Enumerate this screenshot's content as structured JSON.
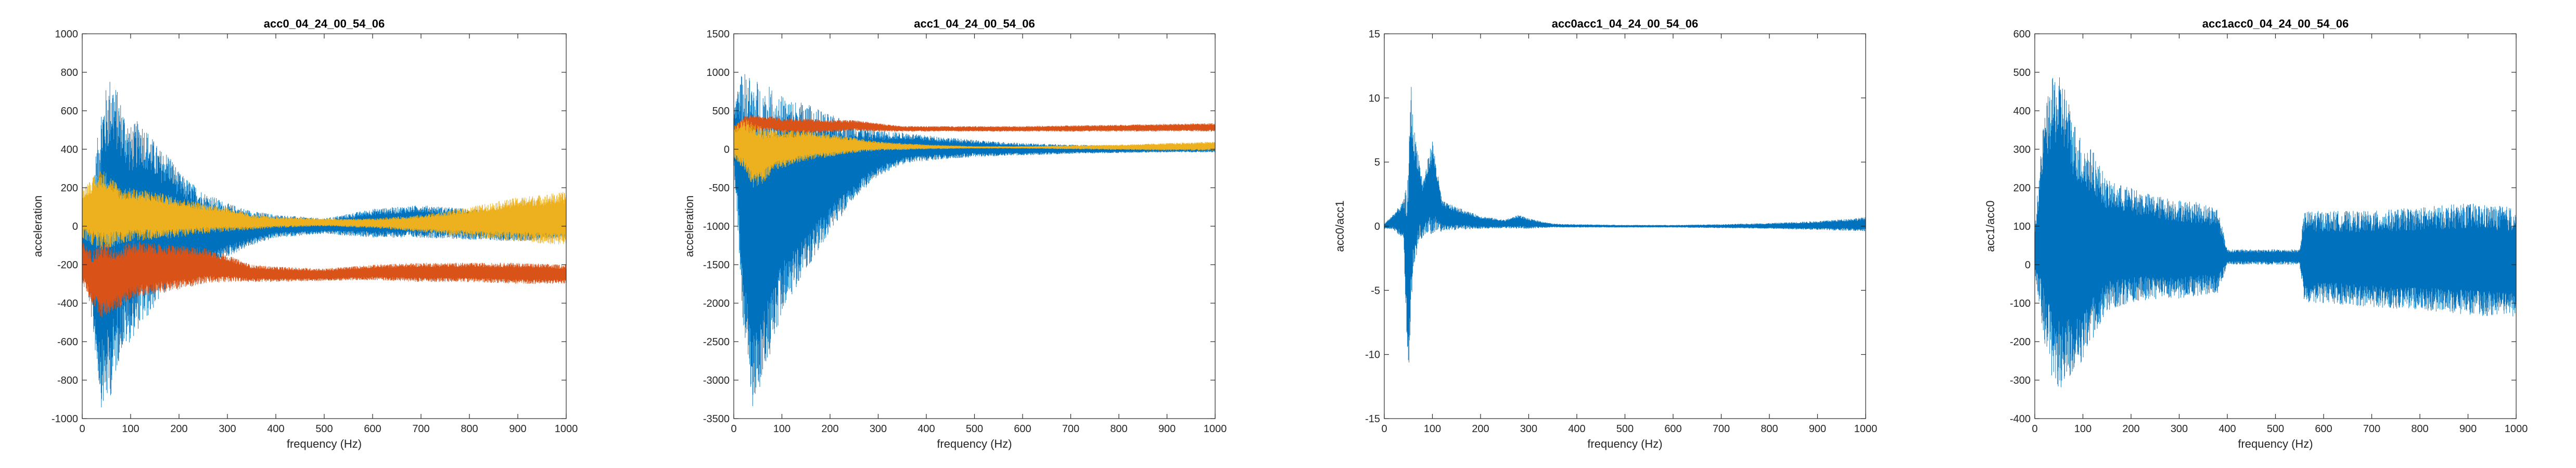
{
  "colors": {
    "series1": "#0072BD",
    "series2": "#D95319",
    "series3": "#EDB120",
    "axis": "#262626"
  },
  "chart_data": [
    {
      "type": "line",
      "title": "acc0_04_24_00_54_06",
      "xlabel": "frequency (Hz)",
      "ylabel": "acceleration",
      "xlim": [
        0,
        1000
      ],
      "ylim": [
        -1000,
        1000
      ],
      "xticks": [
        "0",
        "100",
        "200",
        "300",
        "400",
        "500",
        "600",
        "700",
        "800",
        "900",
        "1000"
      ],
      "yticks": [
        "-1000",
        "-800",
        "-600",
        "-400",
        "-200",
        "0",
        "200",
        "400",
        "600",
        "800",
        "1000"
      ],
      "grid": false,
      "envelope_series": [
        {
          "color_key": "series1",
          "x": [
            0,
            20,
            40,
            60,
            80,
            100,
            120,
            140,
            160,
            180,
            200,
            250,
            300,
            350,
            400,
            500,
            600,
            700,
            800,
            900,
            1000
          ],
          "upper": [
            100,
            200,
            650,
            800,
            650,
            520,
            560,
            480,
            400,
            380,
            280,
            180,
            120,
            80,
            60,
            40,
            90,
            110,
            90,
            60,
            20
          ],
          "lower": [
            -150,
            -500,
            -950,
            -880,
            -650,
            -600,
            -520,
            -460,
            -380,
            -320,
            -300,
            -250,
            -160,
            -100,
            -60,
            -40,
            -60,
            -60,
            -70,
            -80,
            -60
          ]
        },
        {
          "color_key": "series2",
          "x": [
            0,
            20,
            40,
            60,
            80,
            100,
            150,
            200,
            250,
            300,
            350,
            400,
            500,
            600,
            700,
            800,
            900,
            1000
          ],
          "upper": [
            -80,
            -130,
            -80,
            -100,
            -110,
            -70,
            -90,
            -100,
            -110,
            -150,
            -200,
            -210,
            -220,
            -200,
            -190,
            -190,
            -190,
            -200
          ],
          "lower": [
            -300,
            -400,
            -480,
            -450,
            -420,
            -380,
            -350,
            -330,
            -300,
            -290,
            -290,
            -290,
            -285,
            -280,
            -290,
            -290,
            -300,
            -300
          ]
        },
        {
          "color_key": "series3",
          "x": [
            0,
            20,
            40,
            60,
            80,
            100,
            150,
            200,
            250,
            300,
            350,
            400,
            500,
            600,
            700,
            800,
            900,
            1000
          ],
          "upper": [
            200,
            250,
            300,
            260,
            200,
            200,
            180,
            150,
            120,
            100,
            60,
            50,
            40,
            40,
            60,
            100,
            150,
            180
          ],
          "lower": [
            -60,
            -100,
            -130,
            -110,
            -90,
            -80,
            -70,
            -60,
            -40,
            -30,
            -20,
            -10,
            0,
            -10,
            -30,
            -60,
            -80,
            -100
          ]
        }
      ]
    },
    {
      "type": "line",
      "title": "acc1_04_24_00_54_06",
      "xlabel": "frequency (Hz)",
      "ylabel": "acceleration",
      "xlim": [
        0,
        1000
      ],
      "ylim": [
        -3500,
        1500
      ],
      "xticks": [
        "0",
        "100",
        "200",
        "300",
        "400",
        "500",
        "600",
        "700",
        "800",
        "900",
        "1000"
      ],
      "yticks": [
        "-3500",
        "-3000",
        "-2500",
        "-2000",
        "-1500",
        "-1000",
        "-500",
        "0",
        "500",
        "1000",
        "1500"
      ],
      "grid": false,
      "envelope_series": [
        {
          "color_key": "series1",
          "x": [
            0,
            10,
            20,
            40,
            60,
            80,
            100,
            150,
            200,
            250,
            300,
            350,
            400,
            500,
            600,
            700,
            800,
            900,
            1000
          ],
          "upper": [
            500,
            900,
            1000,
            950,
            850,
            800,
            700,
            600,
            450,
            350,
            250,
            220,
            180,
            120,
            80,
            60,
            50,
            40,
            40
          ],
          "lower": [
            -200,
            -1200,
            -2400,
            -3400,
            -3000,
            -2600,
            -2100,
            -1600,
            -1100,
            -650,
            -350,
            -200,
            -150,
            -100,
            -80,
            -60,
            -50,
            -40,
            -40
          ]
        },
        {
          "color_key": "series2",
          "x": [
            0,
            20,
            40,
            60,
            80,
            100,
            150,
            200,
            250,
            300,
            350,
            400,
            500,
            600,
            700,
            800,
            900,
            1000
          ],
          "upper": [
            300,
            420,
            450,
            420,
            430,
            400,
            400,
            380,
            380,
            340,
            300,
            300,
            300,
            300,
            310,
            320,
            330,
            340
          ],
          "lower": [
            150,
            200,
            220,
            240,
            240,
            220,
            200,
            220,
            240,
            230,
            230,
            230,
            230,
            230,
            230,
            230,
            230,
            230
          ]
        },
        {
          "color_key": "series3",
          "x": [
            0,
            20,
            40,
            60,
            80,
            100,
            150,
            200,
            250,
            300,
            350,
            400,
            500,
            600,
            700,
            800,
            900,
            1000
          ],
          "upper": [
            300,
            400,
            350,
            300,
            280,
            250,
            250,
            200,
            150,
            100,
            80,
            60,
            40,
            40,
            50,
            60,
            80,
            100
          ],
          "lower": [
            -150,
            -250,
            -500,
            -450,
            -300,
            -250,
            -150,
            -100,
            -50,
            -20,
            -10,
            0,
            10,
            10,
            0,
            -10,
            -20,
            -20
          ]
        }
      ]
    },
    {
      "type": "line",
      "title": "acc0acc1_04_24_00_54_06",
      "xlabel": "frequency (Hz)",
      "ylabel": "acc0/acc1",
      "xlim": [
        0,
        1000
      ],
      "ylim": [
        -15,
        15
      ],
      "xticks": [
        "0",
        "100",
        "200",
        "300",
        "400",
        "500",
        "600",
        "700",
        "800",
        "900",
        "1000"
      ],
      "yticks": [
        "-15",
        "-10",
        "-5",
        "0",
        "5",
        "10",
        "15"
      ],
      "grid": false,
      "envelope_series": [
        {
          "color_key": "series1",
          "x": [
            0,
            20,
            40,
            50,
            55,
            60,
            70,
            80,
            100,
            120,
            150,
            200,
            250,
            280,
            300,
            350,
            400,
            500,
            600,
            700,
            800,
            900,
            1000
          ],
          "upper": [
            0.2,
            1.0,
            2.0,
            4.0,
            12.0,
            8.0,
            6.0,
            3.5,
            6.8,
            2.0,
            1.5,
            0.8,
            0.5,
            0.9,
            0.6,
            0.2,
            0.15,
            0.1,
            0.1,
            0.15,
            0.25,
            0.4,
            0.7
          ],
          "lower": [
            -0.2,
            -0.3,
            -1.0,
            -12.5,
            -8.0,
            -4.0,
            -1.5,
            -0.8,
            -0.6,
            -0.4,
            -0.3,
            -0.2,
            -0.15,
            -0.2,
            -0.2,
            -0.1,
            -0.1,
            -0.1,
            -0.1,
            -0.15,
            -0.2,
            -0.3,
            -0.4
          ]
        }
      ]
    },
    {
      "type": "line",
      "title": "acc1acc0_04_24_00_54_06",
      "xlabel": "frequency (Hz)",
      "ylabel": "acc1/acc0",
      "xlim": [
        0,
        1000
      ],
      "ylim": [
        -400,
        600
      ],
      "xticks": [
        "0",
        "100",
        "200",
        "300",
        "400",
        "500",
        "600",
        "700",
        "800",
        "900",
        "1000"
      ],
      "yticks": [
        "-400",
        "-300",
        "-200",
        "-100",
        "0",
        "100",
        "200",
        "300",
        "400",
        "500",
        "600"
      ],
      "grid": false,
      "envelope_series": [
        {
          "color_key": "series1",
          "x": [
            0,
            20,
            40,
            60,
            80,
            100,
            120,
            150,
            200,
            250,
            300,
            350,
            380,
            400,
            450,
            500,
            550,
            560,
            600,
            700,
            800,
            900,
            1000
          ],
          "upper": [
            100,
            400,
            500,
            480,
            380,
            320,
            300,
            220,
            200,
            180,
            170,
            160,
            150,
            40,
            40,
            40,
            40,
            140,
            140,
            140,
            150,
            160,
            150
          ],
          "lower": [
            -20,
            -200,
            -330,
            -320,
            -280,
            -260,
            -200,
            -120,
            -100,
            -90,
            -90,
            -80,
            -80,
            0,
            0,
            0,
            0,
            -100,
            -100,
            -110,
            -120,
            -130,
            -140
          ]
        }
      ]
    }
  ]
}
